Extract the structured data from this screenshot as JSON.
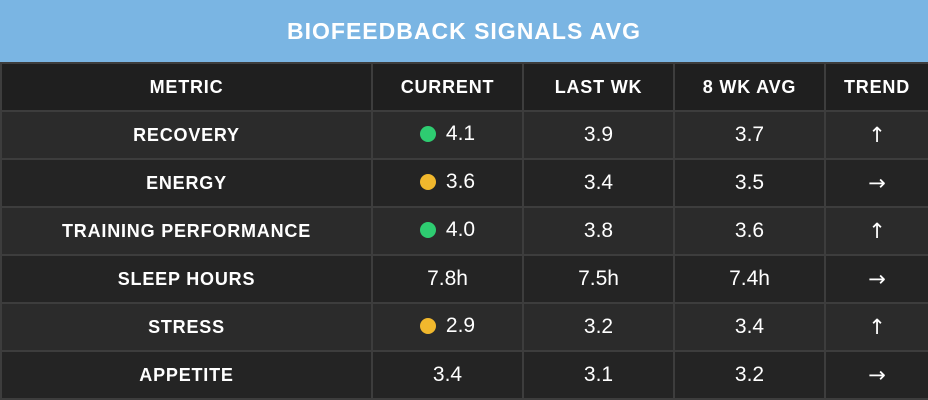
{
  "title": "BIOFEEDBACK SIGNALS AVG",
  "columns": [
    "METRIC",
    "CURRENT",
    "LAST WK",
    "8 WK AVG",
    "TREND"
  ],
  "colors": {
    "green": "#2ecc71",
    "yellow": "#f1b82d",
    "header_bg": "#7ab5e3"
  },
  "rows": [
    {
      "metric": "RECOVERY",
      "current": "4.1",
      "status": "green",
      "last_wk": "3.9",
      "avg8": "3.7",
      "trend": "↑",
      "trend_icon": "arrow-up-icon"
    },
    {
      "metric": "ENERGY",
      "current": "3.6",
      "status": "yellow",
      "last_wk": "3.4",
      "avg8": "3.5",
      "trend": "→",
      "trend_icon": "arrow-right-icon"
    },
    {
      "metric": "TRAINING PERFORMANCE",
      "current": "4.0",
      "status": "green",
      "last_wk": "3.8",
      "avg8": "3.6",
      "trend": "↑",
      "trend_icon": "arrow-up-icon"
    },
    {
      "metric": "SLEEP HOURS",
      "current": "7.8h",
      "status": "",
      "last_wk": "7.5h",
      "avg8": "7.4h",
      "trend": "→",
      "trend_icon": "arrow-right-icon"
    },
    {
      "metric": "STRESS",
      "current": "2.9",
      "status": "yellow",
      "last_wk": "3.2",
      "avg8": "3.4",
      "trend": "↑",
      "trend_icon": "arrow-up-icon"
    },
    {
      "metric": "APPETITE",
      "current": "3.4",
      "status": "",
      "last_wk": "3.1",
      "avg8": "3.2",
      "trend": "→",
      "trend_icon": "arrow-right-icon"
    }
  ]
}
